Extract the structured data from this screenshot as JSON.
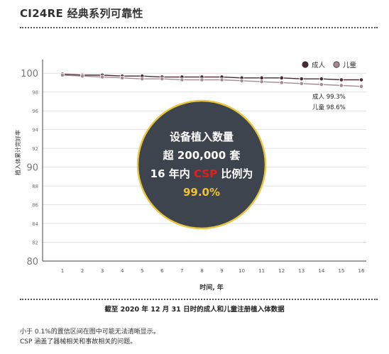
{
  "title": "CI24RE 经典系列可靠性",
  "caption": "截至 2020 年 12 月 31 日时的成人和儿童注册植入体数据",
  "notes": [
    "小于 0.1%的置信区间在图中可能无法清晰显示。",
    "CSP 涵盖了器械相关和事故相关的问题。"
  ],
  "callout": {
    "line1": "设备植入数量",
    "line2": "超 200,000 套",
    "line3_prefix": "16 年内 ",
    "line3_highlight": "CSP",
    "line3_suffix": " 比例为",
    "line4": "99.0%",
    "highlight_color": "#e02020",
    "value_color": "#f2c230",
    "fill_color": "#3d444d",
    "ring_color": "#e8c640"
  },
  "end_labels": {
    "adult": "成人 99.3%",
    "child": "儿童 98.6%"
  },
  "chart_data": {
    "type": "line",
    "xlabel": "时间, 年",
    "ylabel": "植入体累计完好率",
    "x": [
      1,
      2,
      3,
      4,
      5,
      6,
      7,
      8,
      9,
      10,
      11,
      12,
      13,
      14,
      15,
      16
    ],
    "ylim": [
      80,
      101
    ],
    "yticks": [
      80,
      82,
      84,
      86,
      88,
      90,
      92,
      94,
      96,
      98,
      100
    ],
    "legend_position": "top-right",
    "series": [
      {
        "name": "成人",
        "color": "#4a2a35",
        "values": [
          99.9,
          99.8,
          99.8,
          99.7,
          99.7,
          99.6,
          99.6,
          99.6,
          99.6,
          99.5,
          99.5,
          99.5,
          99.4,
          99.4,
          99.3,
          99.3
        ]
      },
      {
        "name": "儿童",
        "color": "#a48a93",
        "values": [
          99.8,
          99.7,
          99.6,
          99.5,
          99.4,
          99.4,
          99.3,
          99.3,
          99.3,
          99.2,
          99.1,
          99.0,
          98.9,
          98.8,
          98.7,
          98.6
        ]
      }
    ]
  }
}
